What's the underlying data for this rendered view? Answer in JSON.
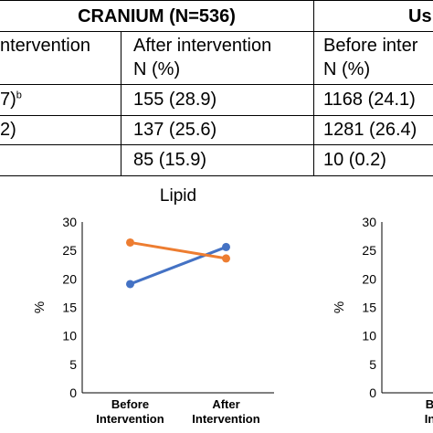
{
  "table": {
    "group_left": "CRANIUM (N=536)",
    "group_right": "Us",
    "col_before_cut": "ntervention",
    "col_after": "After intervention",
    "col_after_unit": "N (%)",
    "col_before_right": "Before inter",
    "col_before_right_unit": "N (%)",
    "rows": [
      {
        "cut": "7)",
        "cut_sup": "b",
        "after": "155 (28.9)",
        "right": "1168 (24.1)"
      },
      {
        "cut": "2)",
        "cut_sup": "",
        "after": "137 (25.6)",
        "right": "1281 (26.4)"
      },
      {
        "cut": "",
        "cut_sup": "",
        "after": "85 (15.9)",
        "right": "10 (0.2)"
      }
    ]
  },
  "charts": {
    "left": {
      "title": "Lipid",
      "ylabel": "%",
      "yticks": [
        "30",
        "25",
        "20",
        "15",
        "10",
        "5",
        "0"
      ],
      "xticks": [
        {
          "line1": "Before",
          "line2": "Intervention"
        },
        {
          "line1": "After",
          "line2": "Intervention"
        }
      ]
    },
    "right": {
      "ylabel": "%",
      "yticks": [
        "30",
        "25",
        "20",
        "15",
        "10",
        "5",
        "0"
      ],
      "xticks": [
        {
          "line1": "B",
          "line2": "In"
        }
      ]
    }
  },
  "chart_data": [
    {
      "type": "line",
      "title": "Lipid",
      "xlabel": "",
      "ylabel": "%",
      "categories": [
        "Before Intervention",
        "After Intervention"
      ],
      "ylim": [
        0,
        30
      ],
      "series": [
        {
          "values": [
            19.1,
            25.6
          ],
          "color": "#4472c4"
        },
        {
          "values": [
            26.4,
            23.6
          ],
          "color": "#ed7d31"
        }
      ]
    },
    {
      "type": "line",
      "title": "",
      "xlabel": "",
      "ylabel": "%",
      "categories": [],
      "ylim": [
        0,
        30
      ],
      "series": []
    }
  ]
}
